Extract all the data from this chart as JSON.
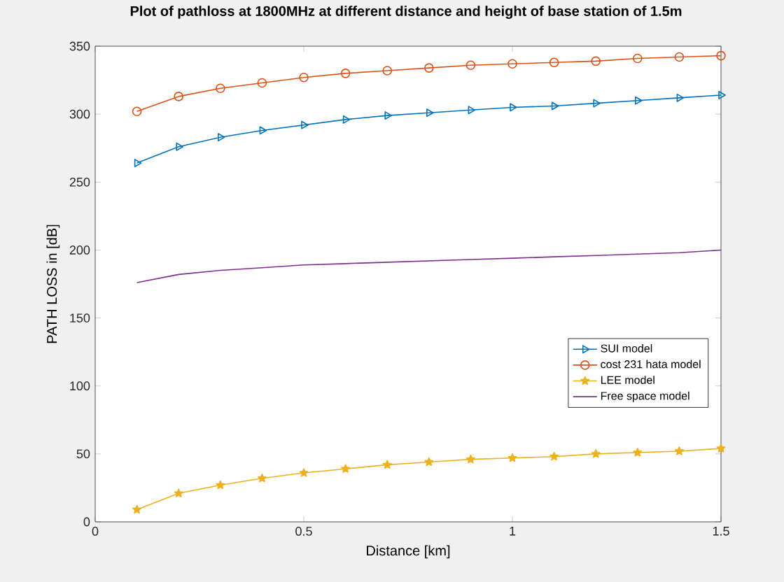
{
  "chart_data": {
    "type": "line",
    "title": "Plot of pathloss at 1800MHz at different distance and height of base station of 1.5m",
    "xlabel": "Distance [km]",
    "ylabel": "PATH LOSS in [dB]",
    "x": [
      0.1,
      0.2,
      0.3,
      0.4,
      0.5,
      0.6,
      0.7,
      0.8,
      0.9,
      1.0,
      1.1,
      1.2,
      1.3,
      1.4,
      1.5
    ],
    "series": [
      {
        "name": "SUI model",
        "color": "#0072bd",
        "marker": "triangle",
        "values": [
          264,
          276,
          283,
          288,
          292,
          296,
          299,
          301,
          303,
          305,
          306,
          308,
          310,
          312,
          314
        ]
      },
      {
        "name": "cost 231 hata model",
        "color": "#d95319",
        "marker": "circle",
        "values": [
          302,
          313,
          319,
          323,
          327,
          330,
          332,
          334,
          336,
          337,
          338,
          339,
          341,
          342,
          343
        ]
      },
      {
        "name": "LEE model",
        "color": "#edb120",
        "marker": "star",
        "values": [
          9,
          21,
          27,
          32,
          36,
          39,
          42,
          44,
          46,
          47,
          48,
          50,
          51,
          52,
          54
        ]
      },
      {
        "name": "Free space model",
        "color": "#7e2f8e",
        "marker": "none",
        "values": [
          176,
          182,
          185,
          187,
          189,
          190,
          191,
          192,
          193,
          194,
          195,
          196,
          197,
          198,
          200
        ]
      }
    ],
    "xlim": [
      0,
      1.5
    ],
    "xticks": [
      0,
      0.5,
      1,
      1.5
    ],
    "ylim": [
      0,
      350
    ],
    "yticks": [
      0,
      50,
      100,
      150,
      200,
      250,
      300,
      350
    ],
    "grid": false,
    "legend": "bottom right",
    "line_style": "solid"
  }
}
